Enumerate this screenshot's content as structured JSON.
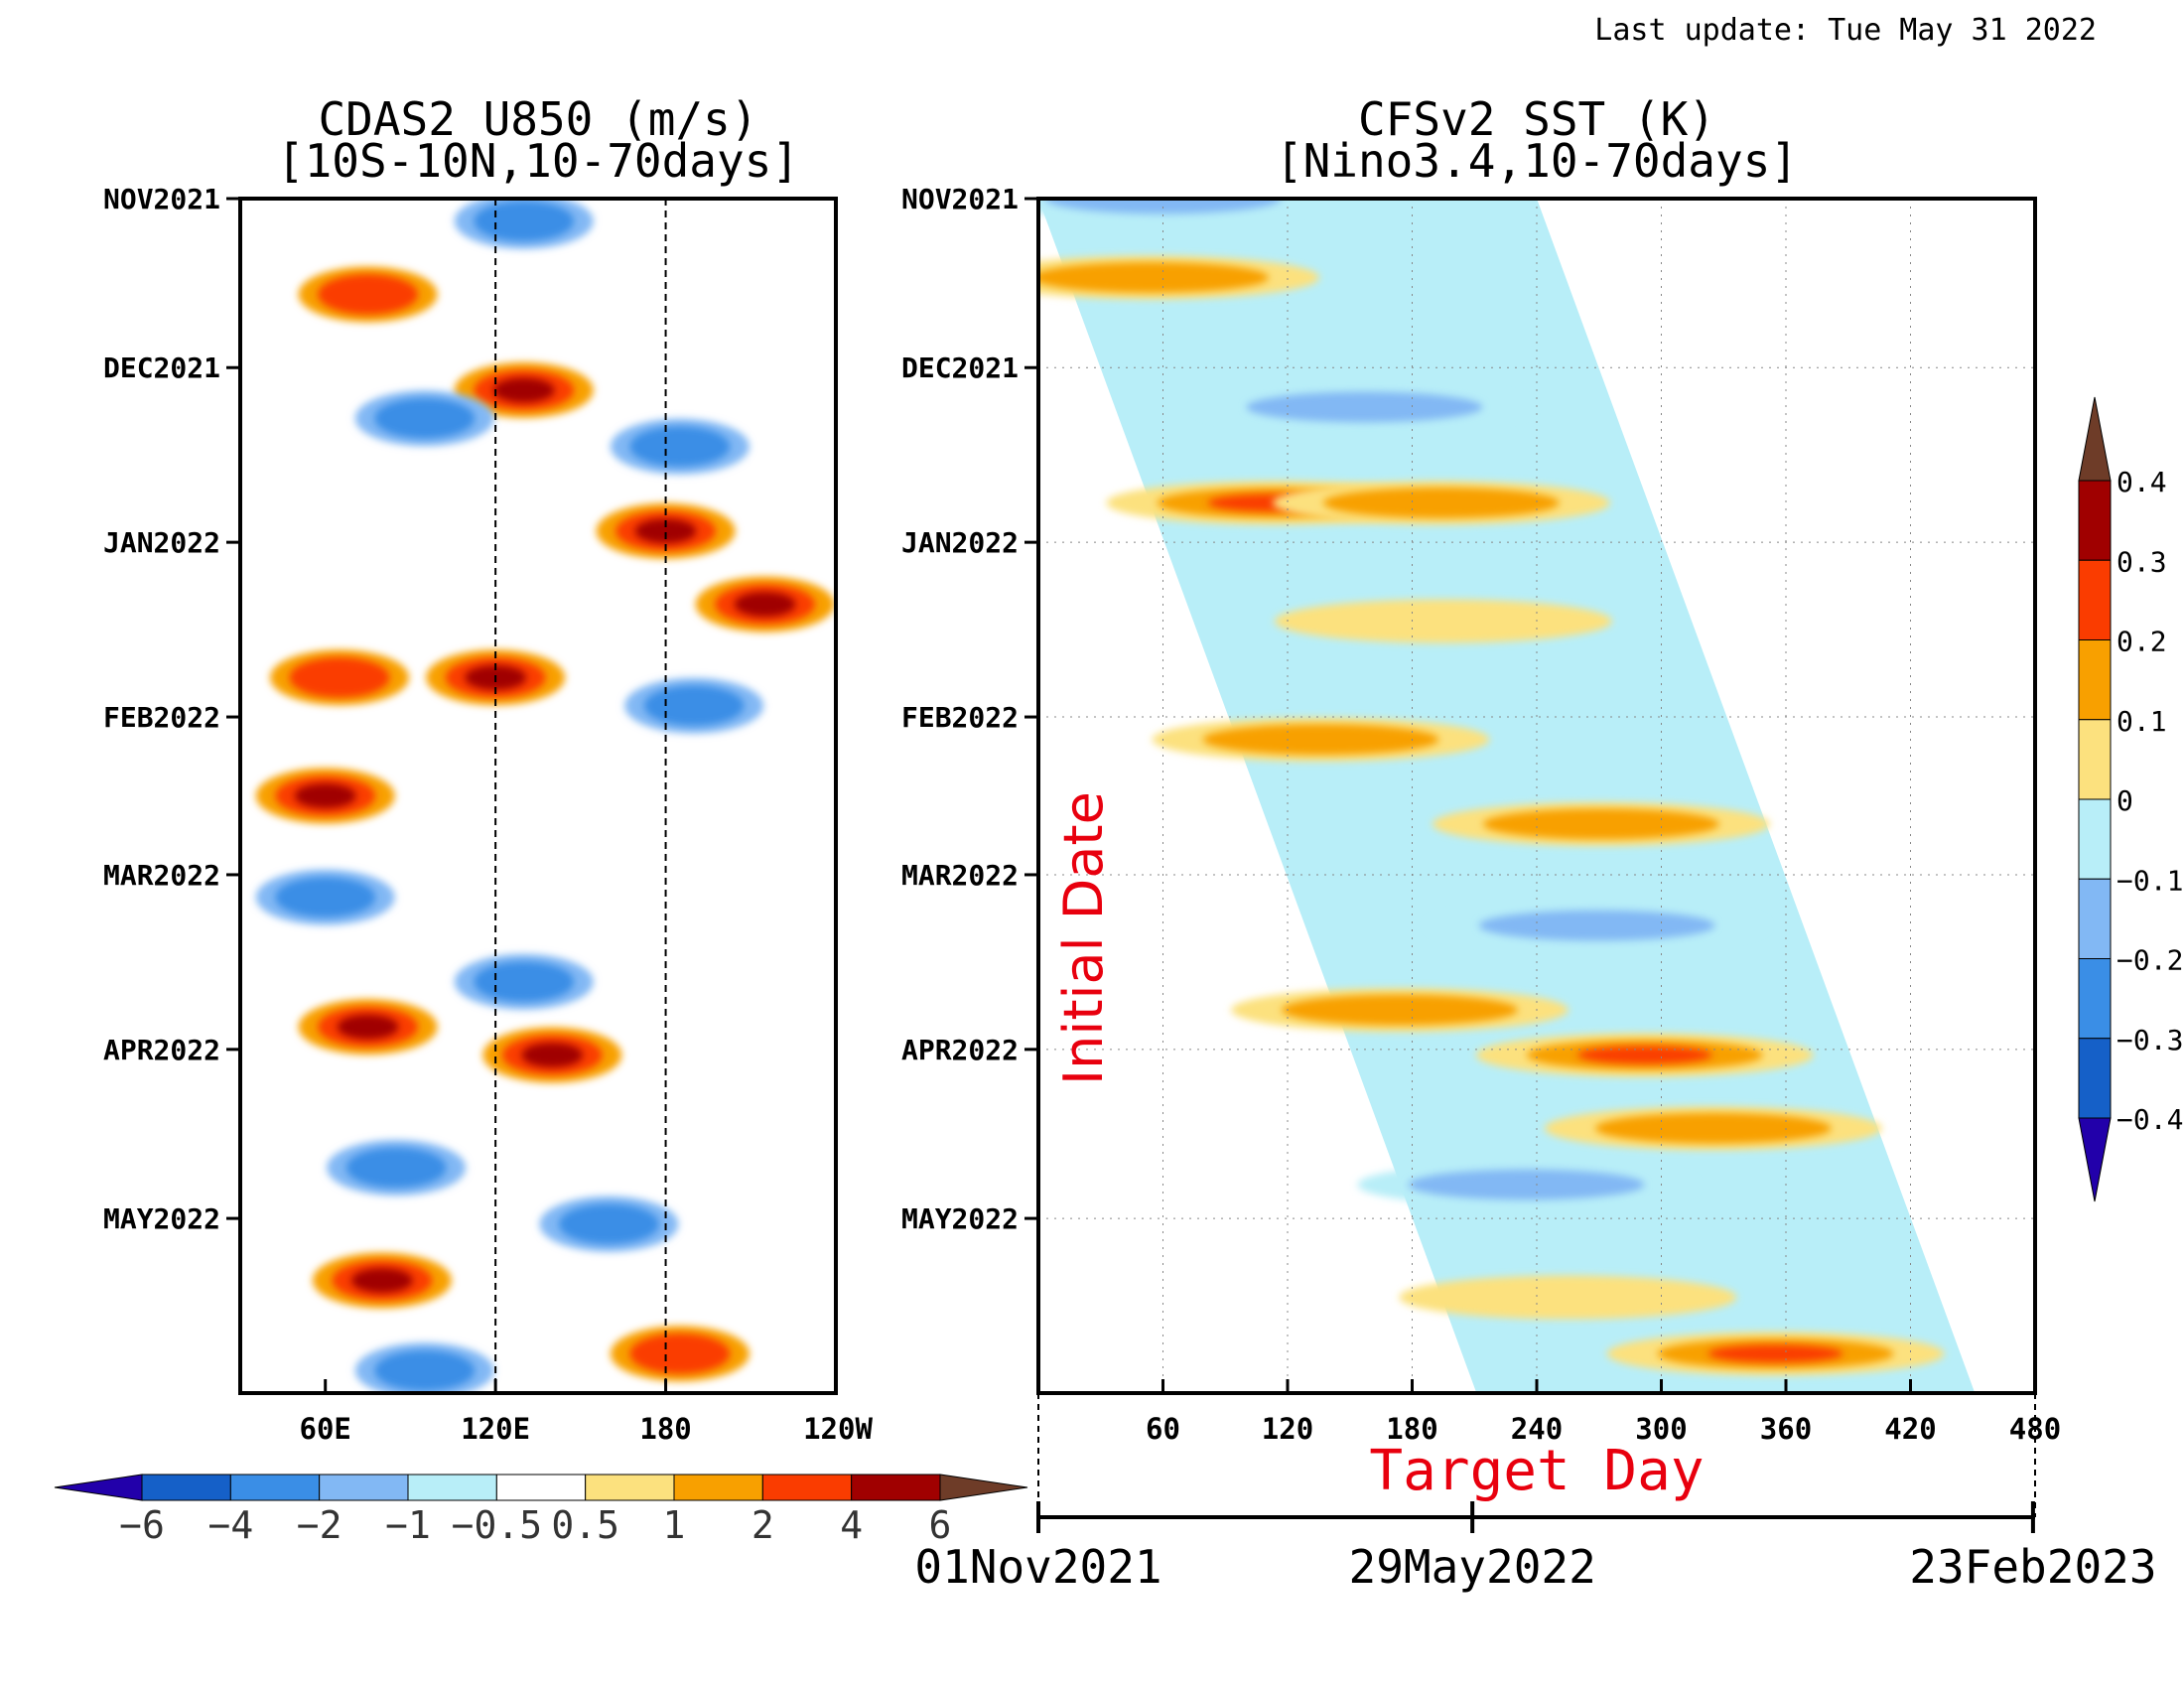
{
  "header": {
    "last_update": "Last update: Tue May 31 2022"
  },
  "chart_data": [
    {
      "type": "heatmap",
      "title": "CDAS2 U850 (m/s)",
      "subtitle": "[10S-10N,10-70days]",
      "x_ticks": [
        "60E",
        "120E",
        "180",
        "120W"
      ],
      "x_tick_values": [
        60,
        120,
        180,
        240
      ],
      "xlim": [
        30,
        240
      ],
      "y_ticks": [
        "NOV2021",
        "DEC2021",
        "JAN2022",
        "FEB2022",
        "MAR2022",
        "APR2022",
        "MAY2022"
      ],
      "ylim": [
        "2021-11-01",
        "2022-05-31"
      ],
      "reference_lines_x": [
        120,
        180
      ],
      "colorbar": {
        "levels": [
          "-6",
          "-4",
          "-2",
          "-1",
          "-0.5",
          "0.5",
          "1",
          "2",
          "4",
          "6"
        ],
        "colors": [
          "#2200aa",
          "#1560c8",
          "#3a8ee6",
          "#82b8f4",
          "#b8eef8",
          "#ffffff",
          "#fce17e",
          "#f8a000",
          "#fa3c00",
          "#a00000",
          "#6e3c28"
        ]
      },
      "anomalies": [
        {
          "lon": 75,
          "date": "2021-11-18",
          "value": 2.5
        },
        {
          "lon": 130,
          "date": "2021-12-05",
          "value": 5
        },
        {
          "lon": 180,
          "date": "2021-12-30",
          "value": 4
        },
        {
          "lon": 215,
          "date": "2022-01-12",
          "value": 5
        },
        {
          "lon": 120,
          "date": "2022-01-25",
          "value": 4
        },
        {
          "lon": 65,
          "date": "2022-01-25",
          "value": 2.5
        },
        {
          "lon": 60,
          "date": "2022-02-15",
          "value": 4
        },
        {
          "lon": 75,
          "date": "2022-03-28",
          "value": 5
        },
        {
          "lon": 140,
          "date": "2022-04-02",
          "value": 4
        },
        {
          "lon": 80,
          "date": "2022-05-12",
          "value": 6
        },
        {
          "lon": 185,
          "date": "2022-05-25",
          "value": 2.5
        },
        {
          "lon": 130,
          "date": "2022-03-20",
          "value": -2.5
        },
        {
          "lon": 60,
          "date": "2022-03-05",
          "value": -2.5
        },
        {
          "lon": 85,
          "date": "2022-04-22",
          "value": -2.5
        },
        {
          "lon": 185,
          "date": "2021-12-15",
          "value": -3
        },
        {
          "lon": 190,
          "date": "2022-01-30",
          "value": -2.5
        },
        {
          "lon": 130,
          "date": "2021-11-05",
          "value": -2.5
        },
        {
          "lon": 160,
          "date": "2022-05-02",
          "value": -2
        },
        {
          "lon": 95,
          "date": "2021-12-10",
          "value": -2
        },
        {
          "lon": 95,
          "date": "2022-05-28",
          "value": -2
        }
      ]
    },
    {
      "type": "heatmap",
      "title": "CFSv2 SST (K)",
      "subtitle": "[Nino3.4,10-70days]",
      "xlabel": "Target Day",
      "ylabel": "Initial Date",
      "x_ticks": [
        "60",
        "120",
        "180",
        "240",
        "300",
        "360",
        "420",
        "480"
      ],
      "x_tick_values": [
        60,
        120,
        180,
        240,
        300,
        360,
        420,
        480
      ],
      "xlim": [
        0,
        480
      ],
      "y_ticks": [
        "NOV2021",
        "DEC2021",
        "JAN2022",
        "FEB2022",
        "MAR2022",
        "APR2022",
        "MAY2022"
      ],
      "ylim": [
        "2021-11-01",
        "2022-05-31"
      ],
      "forecast_lead_days": 240,
      "grid": true,
      "date_axis": {
        "labels": [
          "01Nov2021",
          "29May2022",
          "23Feb2023"
        ],
        "values": [
          0,
          209,
          479
        ]
      },
      "colorbar": {
        "levels": [
          "-0.4",
          "-0.3",
          "-0.2",
          "-0.1",
          "0",
          "0.1",
          "0.2",
          "0.3",
          "0.4"
        ],
        "colors": [
          "#2200aa",
          "#1560c8",
          "#3a8ee6",
          "#82b8f4",
          "#b8eef8",
          "#fce17e",
          "#f8a000",
          "#fa3c00",
          "#a00000",
          "#6e3c28"
        ]
      },
      "anomalies": [
        {
          "init": "2021-11-01",
          "lead": 60,
          "value": -0.15
        },
        {
          "init": "2021-11-15",
          "lead": 40,
          "value": 0.15
        },
        {
          "init": "2021-12-08",
          "lead": 120,
          "value": -0.15
        },
        {
          "init": "2021-12-25",
          "lead": 60,
          "value": 0.25
        },
        {
          "init": "2021-12-25",
          "lead": 140,
          "value": 0.2
        },
        {
          "init": "2022-01-15",
          "lead": 120,
          "value": 0.05
        },
        {
          "init": "2022-02-05",
          "lead": 40,
          "value": 0.15
        },
        {
          "init": "2022-02-20",
          "lead": 160,
          "value": 0.15
        },
        {
          "init": "2022-03-10",
          "lead": 140,
          "value": -0.15
        },
        {
          "init": "2022-03-25",
          "lead": 30,
          "value": 0.2
        },
        {
          "init": "2022-04-02",
          "lead": 140,
          "value": 0.25
        },
        {
          "init": "2022-04-15",
          "lead": 160,
          "value": 0.15
        },
        {
          "init": "2022-04-25",
          "lead": 60,
          "value": -0.15
        },
        {
          "init": "2022-05-25",
          "lead": 150,
          "value": 0.25
        },
        {
          "init": "2022-05-15",
          "lead": 60,
          "value": 0.05
        }
      ]
    }
  ]
}
